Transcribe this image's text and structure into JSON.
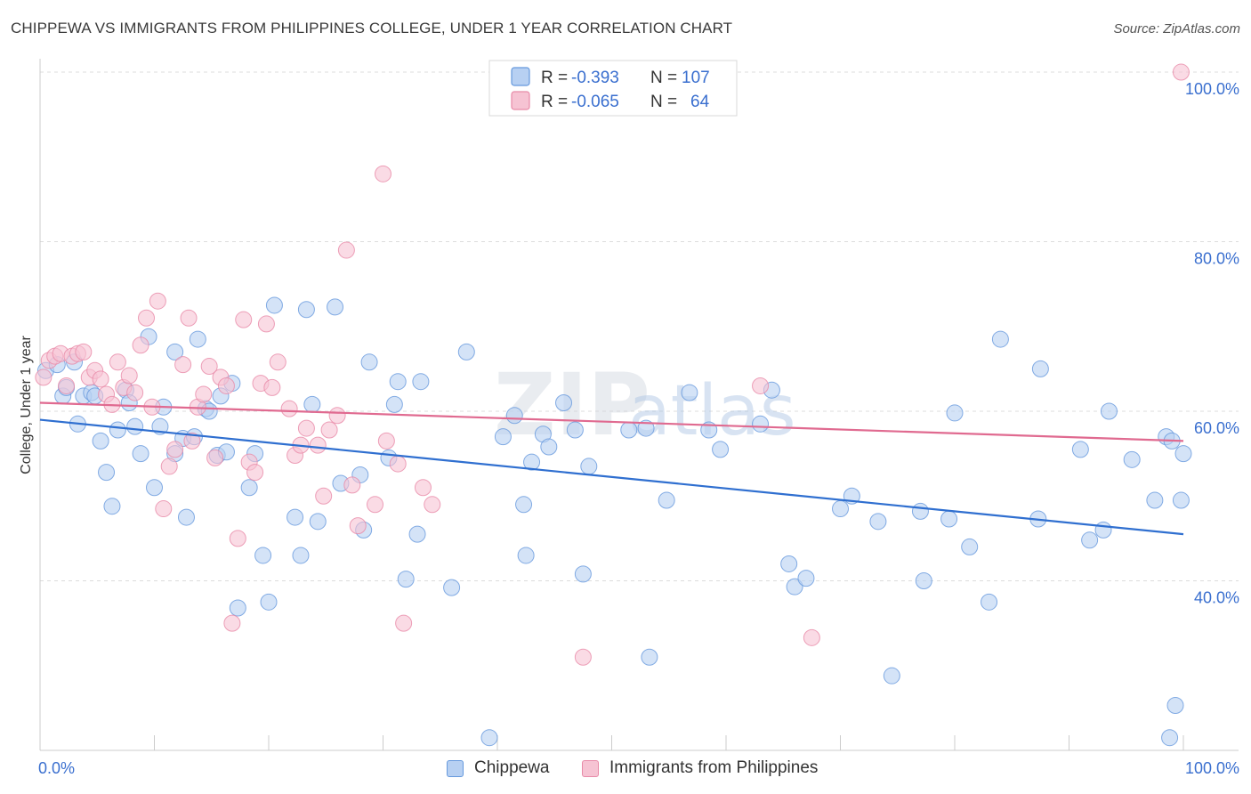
{
  "header": {
    "title": "CHIPPEWA VS IMMIGRANTS FROM PHILIPPINES COLLEGE, UNDER 1 YEAR CORRELATION CHART",
    "source": "Source: ZipAtlas.com"
  },
  "watermark": {
    "part1": "ZIP",
    "part2": "atlas"
  },
  "chart_data": {
    "type": "scatter",
    "title": "CHIPPEWA VS IMMIGRANTS FROM PHILIPPINES COLLEGE, UNDER 1 YEAR CORRELATION CHART",
    "xlabel": "",
    "ylabel": "College, Under 1 year",
    "xlim": [
      0,
      100
    ],
    "ylim": [
      20,
      102
    ],
    "x_tick_labels": {
      "left": "0.0%",
      "right": "100.0%"
    },
    "y_ticks": [
      {
        "value": 40,
        "label": "40.0%"
      },
      {
        "value": 60,
        "label": "60.0%"
      },
      {
        "value": 80,
        "label": "80.0%"
      },
      {
        "value": 100,
        "label": "100.0%"
      }
    ],
    "legend_stats": [
      {
        "r_label": "R =",
        "r_value": "-0.393",
        "n_label": "N =",
        "n_value": "107"
      },
      {
        "r_label": "R =",
        "r_value": "-0.065",
        "n_label": "N =",
        "n_value": "64"
      }
    ],
    "series": [
      {
        "name": "Chippewa",
        "color": "#6699dd",
        "fill": "#b7d0f2",
        "line_color": "#2f6fd0",
        "trend": {
          "x0": 0,
          "y0": 59.0,
          "x1": 100,
          "y1": 45.5
        },
        "points": [
          [
            0.5,
            64.8
          ],
          [
            1.5,
            65.5
          ],
          [
            2.0,
            61.8
          ],
          [
            2.3,
            62.8
          ],
          [
            3.0,
            65.8
          ],
          [
            3.3,
            58.5
          ],
          [
            3.8,
            61.8
          ],
          [
            4.5,
            62.2
          ],
          [
            4.8,
            61.8
          ],
          [
            5.3,
            56.5
          ],
          [
            5.8,
            52.8
          ],
          [
            6.3,
            48.8
          ],
          [
            6.8,
            57.8
          ],
          [
            7.5,
            62.5
          ],
          [
            7.8,
            61.0
          ],
          [
            8.3,
            58.2
          ],
          [
            8.8,
            55.0
          ],
          [
            9.5,
            68.8
          ],
          [
            10.0,
            51.0
          ],
          [
            10.5,
            58.2
          ],
          [
            10.8,
            60.5
          ],
          [
            11.8,
            55.0
          ],
          [
            11.8,
            67.0
          ],
          [
            12.5,
            56.8
          ],
          [
            12.8,
            47.5
          ],
          [
            13.5,
            57.0
          ],
          [
            13.8,
            68.5
          ],
          [
            14.5,
            60.3
          ],
          [
            14.8,
            60.0
          ],
          [
            15.5,
            54.8
          ],
          [
            15.8,
            61.8
          ],
          [
            16.3,
            55.2
          ],
          [
            16.8,
            63.3
          ],
          [
            17.3,
            36.8
          ],
          [
            18.3,
            51.0
          ],
          [
            18.8,
            55.0
          ],
          [
            19.5,
            43.0
          ],
          [
            20.0,
            37.5
          ],
          [
            20.5,
            72.5
          ],
          [
            22.3,
            47.5
          ],
          [
            22.8,
            43.0
          ],
          [
            23.3,
            72.0
          ],
          [
            23.8,
            60.8
          ],
          [
            24.3,
            47.0
          ],
          [
            25.8,
            72.3
          ],
          [
            26.3,
            51.5
          ],
          [
            28.0,
            52.5
          ],
          [
            28.3,
            46.0
          ],
          [
            28.8,
            65.8
          ],
          [
            30.5,
            54.5
          ],
          [
            31.0,
            60.8
          ],
          [
            31.3,
            63.5
          ],
          [
            32.0,
            40.2
          ],
          [
            33.0,
            45.5
          ],
          [
            33.3,
            63.5
          ],
          [
            36.0,
            39.2
          ],
          [
            37.3,
            67.0
          ],
          [
            39.3,
            21.5
          ],
          [
            40.5,
            57.0
          ],
          [
            41.5,
            59.5
          ],
          [
            42.3,
            49.0
          ],
          [
            42.5,
            43.0
          ],
          [
            43.0,
            54.0
          ],
          [
            44.0,
            57.3
          ],
          [
            44.5,
            55.8
          ],
          [
            45.8,
            61.0
          ],
          [
            46.8,
            57.8
          ],
          [
            47.5,
            40.8
          ],
          [
            48.0,
            53.5
          ],
          [
            51.5,
            57.8
          ],
          [
            53.0,
            58.0
          ],
          [
            53.3,
            31.0
          ],
          [
            54.8,
            49.5
          ],
          [
            56.8,
            62.2
          ],
          [
            58.5,
            57.8
          ],
          [
            59.5,
            55.5
          ],
          [
            63.0,
            58.5
          ],
          [
            64.0,
            62.5
          ],
          [
            65.5,
            42.0
          ],
          [
            66.0,
            39.3
          ],
          [
            67.0,
            40.3
          ],
          [
            70.0,
            48.5
          ],
          [
            71.0,
            50.0
          ],
          [
            73.3,
            47.0
          ],
          [
            74.5,
            28.8
          ],
          [
            77.0,
            48.2
          ],
          [
            77.3,
            40.0
          ],
          [
            79.5,
            47.3
          ],
          [
            80.0,
            59.8
          ],
          [
            81.3,
            44.0
          ],
          [
            83.0,
            37.5
          ],
          [
            84.0,
            68.5
          ],
          [
            87.3,
            47.3
          ],
          [
            87.5,
            65.0
          ],
          [
            91.0,
            55.5
          ],
          [
            91.8,
            44.8
          ],
          [
            93.0,
            46.0
          ],
          [
            93.5,
            60.0
          ],
          [
            95.5,
            54.3
          ],
          [
            97.5,
            49.5
          ],
          [
            98.5,
            57.0
          ],
          [
            98.8,
            21.5
          ],
          [
            99.0,
            56.5
          ],
          [
            99.3,
            25.3
          ],
          [
            99.8,
            49.5
          ],
          [
            100.0,
            55.0
          ]
        ]
      },
      {
        "name": "Immigrants from Philippines",
        "color": "#e88aa8",
        "fill": "#f6c3d3",
        "line_color": "#e06a90",
        "trend": {
          "x0": 0,
          "y0": 61.0,
          "x1": 100,
          "y1": 56.5
        },
        "points": [
          [
            0.3,
            64.0
          ],
          [
            0.8,
            66.0
          ],
          [
            1.3,
            66.5
          ],
          [
            1.8,
            66.8
          ],
          [
            2.3,
            63.0
          ],
          [
            2.8,
            66.5
          ],
          [
            3.3,
            66.8
          ],
          [
            3.8,
            67.0
          ],
          [
            4.3,
            64.0
          ],
          [
            4.8,
            64.8
          ],
          [
            5.3,
            63.8
          ],
          [
            5.8,
            62.0
          ],
          [
            6.3,
            60.8
          ],
          [
            6.8,
            65.8
          ],
          [
            7.3,
            62.8
          ],
          [
            7.8,
            64.2
          ],
          [
            8.3,
            62.2
          ],
          [
            8.8,
            67.8
          ],
          [
            9.3,
            71.0
          ],
          [
            9.8,
            60.5
          ],
          [
            10.3,
            73.0
          ],
          [
            10.8,
            48.5
          ],
          [
            11.3,
            53.5
          ],
          [
            11.8,
            55.5
          ],
          [
            12.5,
            65.5
          ],
          [
            13.0,
            71.0
          ],
          [
            13.3,
            56.5
          ],
          [
            13.8,
            60.5
          ],
          [
            14.3,
            62.0
          ],
          [
            14.8,
            65.3
          ],
          [
            15.3,
            54.5
          ],
          [
            15.8,
            64.0
          ],
          [
            16.3,
            63.0
          ],
          [
            16.8,
            35.0
          ],
          [
            17.3,
            45.0
          ],
          [
            17.8,
            70.8
          ],
          [
            18.3,
            54.0
          ],
          [
            18.8,
            52.8
          ],
          [
            19.3,
            63.3
          ],
          [
            19.8,
            70.3
          ],
          [
            20.3,
            62.8
          ],
          [
            20.8,
            65.8
          ],
          [
            21.8,
            60.3
          ],
          [
            22.3,
            54.8
          ],
          [
            22.8,
            56.0
          ],
          [
            23.3,
            58.0
          ],
          [
            24.3,
            56.0
          ],
          [
            24.8,
            50.0
          ],
          [
            25.3,
            57.8
          ],
          [
            26.0,
            59.5
          ],
          [
            26.8,
            79.0
          ],
          [
            27.3,
            51.3
          ],
          [
            27.8,
            46.5
          ],
          [
            29.3,
            49.0
          ],
          [
            30.0,
            88.0
          ],
          [
            30.3,
            56.5
          ],
          [
            31.3,
            53.8
          ],
          [
            31.8,
            35.0
          ],
          [
            33.5,
            51.0
          ],
          [
            34.3,
            49.0
          ],
          [
            47.5,
            31.0
          ],
          [
            63.0,
            63.0
          ],
          [
            67.5,
            33.3
          ],
          [
            99.8,
            100.0
          ]
        ]
      }
    ]
  },
  "legend_bottom": [
    {
      "label": "Chippewa"
    },
    {
      "label": "Immigrants from Philippines"
    }
  ]
}
